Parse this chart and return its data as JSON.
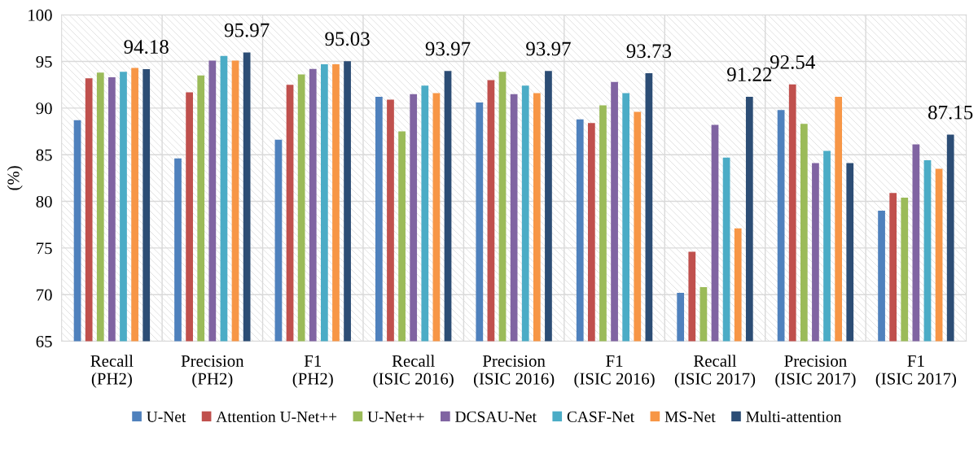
{
  "chart_data": {
    "type": "bar",
    "ylabel": "(%)",
    "categories": [
      "Recall\n(PH2)",
      "Precision\n(PH2)",
      "F1\n(PH2)",
      "Recall\n(ISIC 2016)",
      "Precision\n(ISIC 2016)",
      "F1\n(ISIC 2016)",
      "Recall\n(ISIC 2017)",
      "Precision\n(ISIC 2017)",
      "F1\n(ISIC 2017)"
    ],
    "series": [
      {
        "name": "U-Net",
        "color": "#4f81bd",
        "values": [
          88.7,
          84.6,
          86.6,
          91.2,
          90.6,
          88.8,
          70.2,
          89.8,
          79.0
        ]
      },
      {
        "name": "Attention U-Net++",
        "color": "#c0504d",
        "values": [
          93.2,
          91.7,
          92.5,
          90.9,
          93.0,
          88.4,
          74.6,
          92.54,
          80.9
        ],
        "value_labels": [
          null,
          null,
          null,
          null,
          null,
          null,
          null,
          "92.54",
          null
        ]
      },
      {
        "name": "U-Net++",
        "color": "#9bbb59",
        "values": [
          93.8,
          93.5,
          93.6,
          87.5,
          93.9,
          90.3,
          70.8,
          88.3,
          80.4
        ]
      },
      {
        "name": "DCSAU-Net",
        "color": "#8064a2",
        "values": [
          93.3,
          95.1,
          94.2,
          91.5,
          91.5,
          92.8,
          88.2,
          84.1,
          86.1
        ]
      },
      {
        "name": "CASF-Net",
        "color": "#4bacc6",
        "values": [
          93.9,
          95.6,
          94.7,
          92.4,
          92.4,
          91.6,
          84.7,
          85.4,
          84.4
        ]
      },
      {
        "name": "MS-Net",
        "color": "#f79646",
        "values": [
          94.3,
          95.1,
          94.7,
          91.6,
          91.6,
          89.6,
          77.1,
          91.2,
          83.5
        ]
      },
      {
        "name": "Multi-attention",
        "color": "#2c4d75",
        "values": [
          94.18,
          95.97,
          95.03,
          93.97,
          93.97,
          93.73,
          91.22,
          84.1,
          87.15
        ],
        "value_labels": [
          "94.18",
          "95.97",
          "95.03",
          "93.97",
          "93.97",
          "93.73",
          "91.22",
          null,
          "87.15"
        ]
      }
    ],
    "ylim": [
      65,
      100
    ],
    "yticks": [
      65,
      70,
      75,
      80,
      85,
      90,
      95,
      100
    ],
    "grid": true,
    "legend": "bottom"
  }
}
